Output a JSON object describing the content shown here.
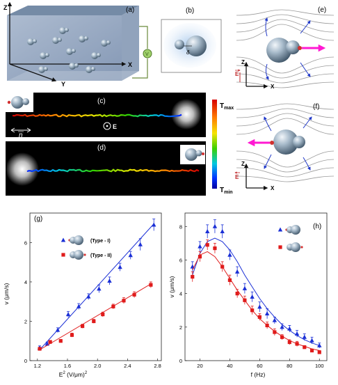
{
  "panels": {
    "a": {
      "label": "(a)",
      "axis_z": "Z",
      "axis_x": "X",
      "axis_y": "Y",
      "source_label": "V"
    },
    "b": {
      "label": "(b)",
      "delta": "δ"
    },
    "c": {
      "label": "(c)",
      "n_label": "n",
      "e_label": "E"
    },
    "d": {
      "label": "(d)"
    },
    "colorbar": {
      "max": "T",
      "max_sub": "max",
      "min": "T",
      "min_sub": "min"
    },
    "e": {
      "label": "(e)",
      "z": "Z",
      "x": "X",
      "field": "E"
    },
    "f": {
      "label": "(f)",
      "z": "Z",
      "x": "X",
      "field": "E"
    },
    "g": {
      "label": "(g)",
      "legend": [
        "(Type - I)",
        "(Type - II)"
      ],
      "xlabel_pre": "E",
      "xlabel_sup": "2",
      "xlabel_post": " (V/μm)",
      "xlabel_sup2": "2",
      "ylabel": "v (μm/s)"
    },
    "h": {
      "label": "(h)",
      "xlabel": "f (Hz)",
      "ylabel": "v (μm/s)"
    }
  },
  "colors": {
    "blue": "#1a2fd6",
    "red": "#e01b1b",
    "arrow_magenta": "#ff19d2",
    "field_red": "#c0282a"
  },
  "chart_data": [
    {
      "type": "scatter",
      "title": "(g)",
      "xlabel": "E2 (V/μm)2",
      "ylabel": "v (μm/s)",
      "xlim": [
        1.1,
        2.85
      ],
      "ylim": [
        0,
        7.5
      ],
      "xticks": [
        1.2,
        1.6,
        2.0,
        2.4,
        2.8
      ],
      "yticks": [
        0,
        2,
        4,
        6
      ],
      "series": [
        {
          "name": "(Type - I)",
          "color": "#1a2fd6",
          "marker": "triangle",
          "x": [
            1.23,
            1.33,
            1.47,
            1.61,
            1.75,
            1.88,
            2.02,
            2.16,
            2.3,
            2.44,
            2.57,
            2.75
          ],
          "y": [
            0.65,
            0.85,
            1.55,
            2.35,
            2.75,
            3.25,
            3.65,
            4.05,
            4.75,
            5.35,
            5.9,
            6.9
          ],
          "err": [
            0.1,
            0.1,
            0.12,
            0.15,
            0.15,
            0.15,
            0.2,
            0.2,
            0.2,
            0.2,
            0.3,
            0.3
          ],
          "fit": [
            [
              1.23,
              0.55
            ],
            [
              2.75,
              6.95
            ]
          ]
        },
        {
          "name": "(Type - II)",
          "color": "#e01b1b",
          "marker": "square",
          "x": [
            1.23,
            1.37,
            1.51,
            1.66,
            1.8,
            1.95,
            2.07,
            2.21,
            2.35,
            2.49,
            2.71
          ],
          "y": [
            0.6,
            0.95,
            1.0,
            1.3,
            1.75,
            2.0,
            2.35,
            2.75,
            3.05,
            3.35,
            3.85
          ],
          "err": [
            0.08,
            0.08,
            0.08,
            0.1,
            0.1,
            0.1,
            0.12,
            0.12,
            0.15,
            0.15,
            0.15
          ],
          "fit": [
            [
              1.23,
              0.55
            ],
            [
              2.71,
              3.9
            ]
          ]
        }
      ]
    },
    {
      "type": "scatter",
      "title": "(h)",
      "xlabel": "f (Hz)",
      "ylabel": "v (μm/s)",
      "xlim": [
        10,
        105
      ],
      "ylim": [
        0,
        8.8
      ],
      "xticks": [
        20,
        40,
        60,
        80,
        100
      ],
      "yticks": [
        0,
        2,
        4,
        6,
        8
      ],
      "series": [
        {
          "name": "",
          "color": "#1a2fd6",
          "marker": "triangle",
          "x": [
            15,
            20,
            25,
            30,
            35,
            40,
            45,
            50,
            55,
            60,
            65,
            70,
            75,
            80,
            85,
            90,
            95,
            100
          ],
          "y": [
            5.6,
            6.8,
            7.7,
            8.0,
            7.7,
            6.3,
            5.3,
            4.3,
            3.8,
            3.2,
            2.8,
            2.4,
            2.0,
            1.9,
            1.6,
            1.4,
            1.2,
            0.9
          ],
          "err": [
            0.3,
            0.3,
            0.4,
            0.4,
            0.4,
            0.3,
            0.3,
            0.3,
            0.3,
            0.3,
            0.3,
            0.2,
            0.2,
            0.2,
            0.2,
            0.2,
            0.2,
            0.15
          ],
          "fit": [
            [
              15,
              5.1
            ],
            [
              20,
              6.4
            ],
            [
              25,
              7.1
            ],
            [
              30,
              7.3
            ],
            [
              35,
              7.1
            ],
            [
              40,
              6.6
            ],
            [
              45,
              5.9
            ],
            [
              50,
              5.1
            ],
            [
              55,
              4.4
            ],
            [
              60,
              3.7
            ],
            [
              65,
              3.1
            ],
            [
              70,
              2.6
            ],
            [
              75,
              2.15
            ],
            [
              80,
              1.8
            ],
            [
              85,
              1.5
            ],
            [
              90,
              1.25
            ],
            [
              95,
              1.05
            ],
            [
              100,
              0.9
            ]
          ]
        },
        {
          "name": "",
          "color": "#e01b1b",
          "marker": "square",
          "x": [
            15,
            20,
            25,
            30,
            35,
            40,
            45,
            50,
            55,
            60,
            65,
            70,
            75,
            80,
            85,
            90,
            95,
            100
          ],
          "y": [
            5.0,
            6.2,
            6.9,
            6.7,
            5.6,
            4.8,
            4.0,
            3.6,
            3.0,
            2.6,
            2.1,
            1.7,
            1.4,
            1.1,
            1.0,
            0.8,
            0.6,
            0.5
          ],
          "err": [
            0.3,
            0.3,
            0.3,
            0.3,
            0.3,
            0.3,
            0.25,
            0.25,
            0.25,
            0.2,
            0.2,
            0.2,
            0.15,
            0.15,
            0.15,
            0.1,
            0.1,
            0.1
          ],
          "fit": [
            [
              15,
              5.4
            ],
            [
              20,
              6.3
            ],
            [
              25,
              6.5
            ],
            [
              30,
              6.2
            ],
            [
              35,
              5.6
            ],
            [
              40,
              4.9
            ],
            [
              45,
              4.2
            ],
            [
              50,
              3.6
            ],
            [
              55,
              3.0
            ],
            [
              60,
              2.5
            ],
            [
              65,
              2.1
            ],
            [
              70,
              1.75
            ],
            [
              75,
              1.45
            ],
            [
              80,
              1.2
            ],
            [
              85,
              1.0
            ],
            [
              90,
              0.85
            ],
            [
              95,
              0.7
            ],
            [
              100,
              0.6
            ]
          ]
        }
      ]
    }
  ]
}
